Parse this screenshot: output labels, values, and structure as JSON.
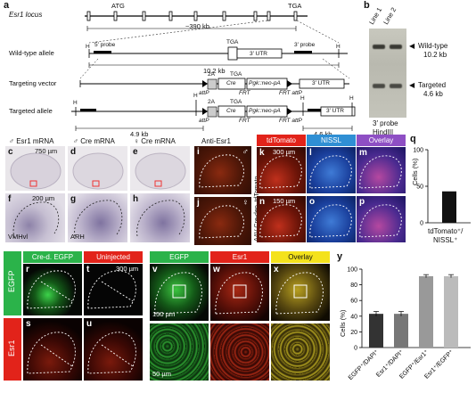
{
  "panel_a": {
    "letter": "a",
    "locus_label": "Esr1 locus",
    "atg": "ATG",
    "tga": "TGA",
    "span_390": "~390 kb",
    "wt_allele": "Wild-type allele",
    "targeting_vector": "Targeting vector",
    "targeted_allele": "Targeted allele",
    "probe5": "5′ probe",
    "probe3": "3′ probe",
    "utr": "3′ UTR",
    "h": "H",
    "cre": "Cre",
    "pgk": "Pgk::neo-pA",
    "twoA": "2A",
    "attp": "attP",
    "frt": "FRT",
    "frt_attp": "FRT attP",
    "kb_102": "10.2 kb",
    "kb_49": "4.9 kb",
    "kb_46": "4.6 kb"
  },
  "panel_b": {
    "letter": "b",
    "line1": "Line 1",
    "line2": "Line 2",
    "wt_label": "Wild-type",
    "wt_kb": "10.2 kb",
    "tg_label": "Targeted",
    "tg_kb": "4.6 kb",
    "probe": "3′ probe",
    "enzyme": "HindIII"
  },
  "panel_ch": {
    "h1": "♂ Esr1 mRNA",
    "h2": "♂ Cre mRNA",
    "h3": "♀ Cre mRNA",
    "c": "c",
    "d": "d",
    "e": "e",
    "f": "f",
    "g": "g",
    "h": "h",
    "sb_c": "750 µm",
    "sb_f": "200 µm",
    "vmhvl": "VMHvl",
    "arh": "ARH"
  },
  "panel_ij": {
    "header": "Anti-Esr1",
    "i": "i",
    "j": "j",
    "male": "♂",
    "female": "♀"
  },
  "panel_kp": {
    "tdtomato": "tdTomato",
    "nissl": "NISSL",
    "overlay": "Overlay",
    "k": "k",
    "l": "l",
    "m": "m",
    "n": "n",
    "o": "o",
    "p": "p",
    "sb_300": "300 µm",
    "sb_150": "150 µm",
    "side1": "AAV Cre-dep. tdTomato",
    "side2": "♂",
    "side3": "♀"
  },
  "panel_q": {
    "letter": "q",
    "ylabel": "Cells (%)",
    "xlabel1": "tdTomato⁺/",
    "xlabel2": "NISSL⁺"
  },
  "panel_ru": {
    "h1": "Cre-d. EGFP",
    "h2": "Uninjected",
    "r": "r",
    "s": "s",
    "t": "t",
    "u": "u",
    "row1": "EGFP",
    "row2": "Esr1",
    "sb": "300 µm"
  },
  "panel_vx": {
    "h1": "EGFP",
    "h2": "Esr1",
    "h3": "Overlay",
    "v": "v",
    "w": "w",
    "x": "x",
    "sb_150": "150 µm",
    "sb_50": "50 µm"
  },
  "panel_y": {
    "letter": "y",
    "ylabel": "Cells (%)"
  },
  "colors": {
    "green": "#2bb34a",
    "red": "#e2231a",
    "yellow": "#f4e21c",
    "blue": "#2f8fd4",
    "purple": "#8e4fc4",
    "bar_dark": "#333333",
    "bar_mid": "#777777",
    "bar_light": "#bbbbbb"
  },
  "chart_data": [
    {
      "type": "bar",
      "id": "q",
      "categories": [
        "tdTomato⁺/NISSL⁺"
      ],
      "values": [
        43
      ],
      "ylabel": "Cells (%)",
      "ylim": [
        0,
        100
      ],
      "yticks": [
        0,
        50,
        100
      ]
    },
    {
      "type": "bar",
      "id": "y",
      "categories": [
        "EGFP⁺/DAPI⁺",
        "Esr1⁺/DAPI⁺",
        "EGFP⁺/Esr1⁺",
        "Esr1⁺/EGFP⁺"
      ],
      "values": [
        43,
        43,
        91,
        91
      ],
      "errors": [
        3,
        3,
        2,
        2
      ],
      "colors": [
        "#333333",
        "#777777",
        "#999999",
        "#bbbbbb"
      ],
      "ylabel": "Cells (%)",
      "ylim": [
        0,
        100
      ],
      "yticks": [
        0,
        20,
        40,
        60,
        80,
        100
      ]
    }
  ]
}
